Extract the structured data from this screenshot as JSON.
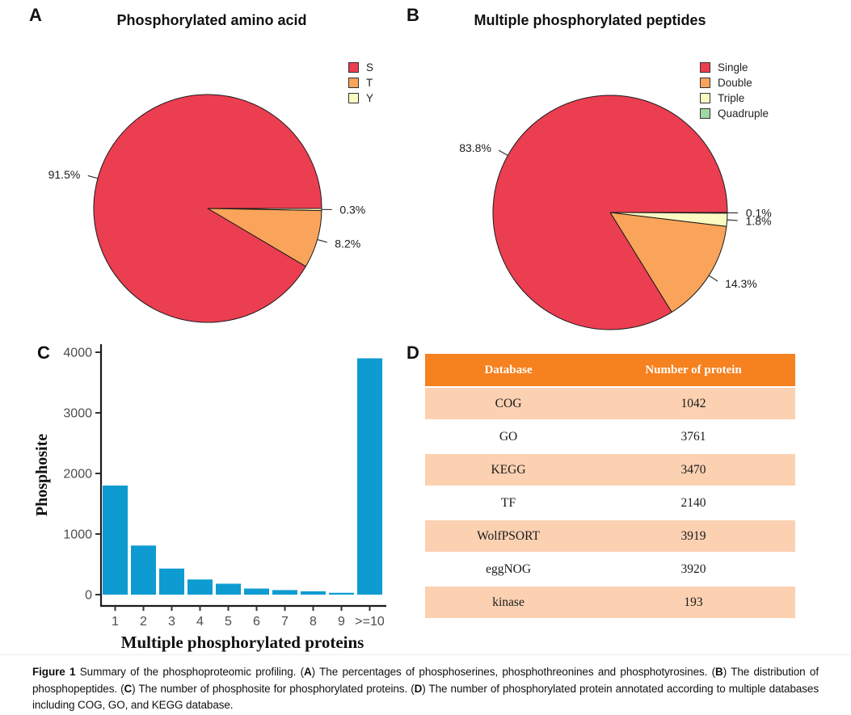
{
  "panels": {
    "a": {
      "letter": "A",
      "title": "Phosphorylated amino acid"
    },
    "b": {
      "letter": "B",
      "title": "Multiple phosphorylated peptides"
    },
    "c": {
      "letter": "C"
    },
    "d": {
      "letter": "D"
    }
  },
  "chart_data": [
    {
      "id": "pie-a",
      "type": "pie",
      "title": "Phosphorylated amino acid",
      "legend_position": "right",
      "slices": [
        {
          "label": "S",
          "pct": 91.5,
          "display": "91.5%",
          "color": "#EC3E51"
        },
        {
          "label": "T",
          "pct": 8.2,
          "display": "8.2%",
          "color": "#F9A45A"
        },
        {
          "label": "Y",
          "pct": 0.3,
          "display": "0.3%",
          "color": "#FBFAC2"
        }
      ]
    },
    {
      "id": "pie-b",
      "type": "pie",
      "title": "Multiple phosphorylated peptides",
      "legend_position": "right",
      "slices": [
        {
          "label": "Single",
          "pct": 83.8,
          "display": "83.8%",
          "color": "#EC3E51"
        },
        {
          "label": "Double",
          "pct": 14.3,
          "display": "14.3%",
          "color": "#F9A45A"
        },
        {
          "label": "Triple",
          "pct": 1.8,
          "display": "1.8%",
          "color": "#FBFAC2"
        },
        {
          "label": "Quadruple",
          "pct": 0.1,
          "display": "0.1%",
          "color": "#9FD8A3"
        }
      ]
    },
    {
      "id": "bar-c",
      "type": "bar",
      "title": "",
      "categories": [
        "1",
        "2",
        "3",
        "4",
        "5",
        "6",
        "7",
        "8",
        "9",
        ">=10"
      ],
      "values": [
        1800,
        810,
        430,
        250,
        180,
        100,
        75,
        55,
        30,
        3900
      ],
      "xlabel": "Multiple phosphorylated proteins",
      "ylabel": "Phosphosite",
      "ylim": [
        0,
        4000
      ],
      "yticks": [
        0,
        1000,
        2000,
        3000,
        4000
      ],
      "bar_color": "#0D9BD1",
      "grid": false,
      "legend": false
    },
    {
      "id": "table-d",
      "type": "table",
      "columns": [
        "Database",
        "Number of protein"
      ],
      "rows": [
        [
          "COG",
          "1042"
        ],
        [
          "GO",
          "3761"
        ],
        [
          "KEGG",
          "3470"
        ],
        [
          "TF",
          "2140"
        ],
        [
          "WolfPSORT",
          "3919"
        ],
        [
          "eggNOG",
          "3920"
        ],
        [
          "kinase",
          "193"
        ]
      ],
      "header_bg": "#F6811F",
      "header_text_color": "#ffffff",
      "row_alt_bg": "#FBD1B2"
    }
  ],
  "caption": {
    "segments": [
      {
        "t": "Figure 1",
        "b": true
      },
      {
        "t": " Summary of the phosphoproteomic profiling. (",
        "b": false
      },
      {
        "t": "A",
        "b": true
      },
      {
        "t": ") The percentages of phosphoserines, phosphothreonines and phosphotyrosines. (",
        "b": false
      },
      {
        "t": "B",
        "b": true
      },
      {
        "t": ") The distribution of phosphopeptides. (",
        "b": false
      },
      {
        "t": "C",
        "b": true
      },
      {
        "t": ") The number of phosphosite for phosphorylated proteins. (",
        "b": false
      },
      {
        "t": "D",
        "b": true
      },
      {
        "t": ") The number of phosphorylated protein annotated according to multiple databases including COG, GO, and KEGG database.",
        "b": false
      }
    ]
  },
  "colors": {
    "pie_red": "#EC3E51",
    "pie_orange": "#F9A45A",
    "pie_yellow": "#FBFAC2",
    "pie_green": "#9FD8A3",
    "bar_blue": "#0D9BD1",
    "table_header_orange": "#F6811F",
    "table_row_peach": "#FBD1B2",
    "tick_gray": "#4d4d4d"
  }
}
